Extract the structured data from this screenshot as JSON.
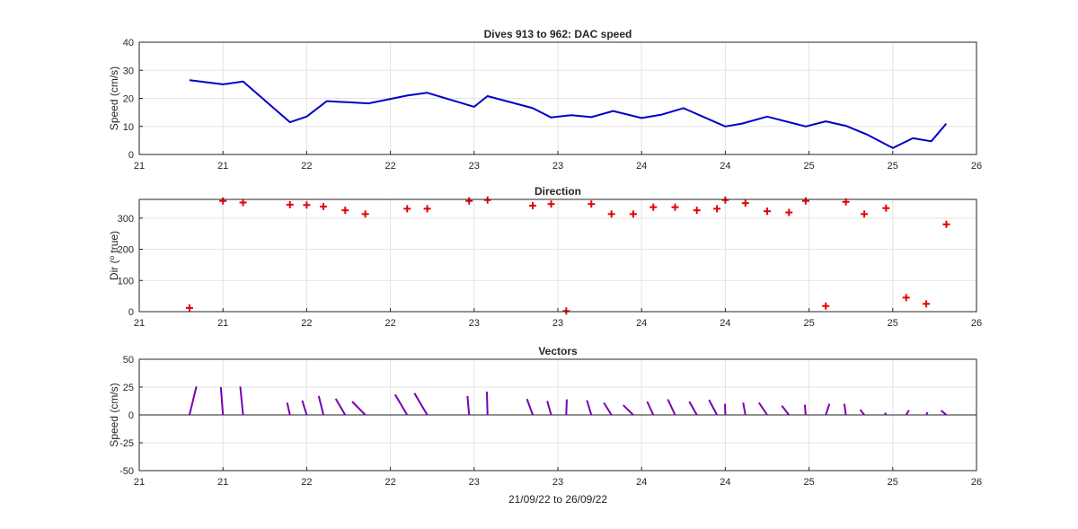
{
  "figure": {
    "background": "#ffffff",
    "xlabel_bottom": "21/09/22 to 26/09/22"
  },
  "chart_data": [
    {
      "type": "line",
      "title": "Dives 913 to 962: DAC speed",
      "ylabel": "Speed (cm/s)",
      "xlim": [
        21,
        26
      ],
      "ylim": [
        0,
        40
      ],
      "xticks": [
        21,
        21.5,
        22,
        22.5,
        23,
        23.5,
        24,
        24.5,
        25,
        25.5,
        26
      ],
      "xtick_labels": [
        "21",
        "21",
        "22",
        "22",
        "23",
        "23",
        "24",
        "24",
        "25",
        "25",
        "26"
      ],
      "yticks": [
        0,
        10,
        20,
        30,
        40
      ],
      "ytick_labels": [
        "0",
        "10",
        "20",
        "30",
        "40"
      ],
      "grid": true,
      "color": "#0000c8",
      "x": [
        21.3,
        21.5,
        21.62,
        21.9,
        22.0,
        22.12,
        22.37,
        22.6,
        22.72,
        23.0,
        23.08,
        23.35,
        23.46,
        23.58,
        23.7,
        23.83,
        24.0,
        24.12,
        24.25,
        24.5,
        24.6,
        24.75,
        24.98,
        25.1,
        25.22,
        25.35,
        25.5,
        25.62,
        25.73,
        25.82
      ],
      "values": [
        26.5,
        25.0,
        26.0,
        11.5,
        13.5,
        19.0,
        18.2,
        21.0,
        22.0,
        17.0,
        20.8,
        16.5,
        13.2,
        14.0,
        13.3,
        15.5,
        13.0,
        14.2,
        16.5,
        10.0,
        11.0,
        13.5,
        10.0,
        11.8,
        10.2,
        7.0,
        2.3,
        5.8,
        4.7,
        11.0
      ],
      "x_in_fn": [
        21.3,
        21.5,
        21.62,
        21.9,
        22.0,
        22.12,
        22.37,
        22.6,
        22.72,
        23.0,
        23.08,
        23.35,
        23.46,
        23.58,
        23.7,
        23.83,
        24.0,
        24.12,
        24.25,
        24.5,
        24.6,
        24.75,
        24.98,
        25.1,
        25.22,
        25.35,
        25.5,
        25.62,
        25.73,
        25.82
      ]
    },
    {
      "type": "scatter",
      "title": "Direction",
      "ylabel": "Dir (",
      "ylabel_sup": "o",
      "ylabel_rest": " true)",
      "xlim": [
        21,
        26
      ],
      "ylim": [
        0,
        360
      ],
      "xticks": [
        21,
        21.5,
        22,
        22.5,
        23,
        23.5,
        24,
        24.5,
        25,
        25.5,
        26
      ],
      "xtick_labels": [
        "21",
        "21",
        "22",
        "22",
        "23",
        "23",
        "24",
        "24",
        "25",
        "25",
        "26"
      ],
      "yticks": [
        0,
        100,
        200,
        300
      ],
      "ytick_labels": [
        "0",
        "100",
        "200",
        "300"
      ],
      "grid": true,
      "marker": "plus",
      "color": "#e60000",
      "x": [
        21.3,
        21.5,
        21.62,
        21.9,
        22.0,
        22.1,
        22.23,
        22.35,
        22.6,
        22.72,
        22.97,
        23.08,
        23.35,
        23.46,
        23.55,
        23.7,
        23.82,
        23.95,
        24.07,
        24.2,
        24.33,
        24.45,
        24.5,
        24.62,
        24.75,
        24.88,
        24.98,
        25.1,
        25.22,
        25.33,
        25.46,
        25.58,
        25.7,
        25.82
      ],
      "values": [
        12,
        355,
        350,
        343,
        342,
        337,
        325,
        313,
        330,
        330,
        355,
        358,
        340,
        345,
        2,
        345,
        313,
        313,
        335,
        335,
        325,
        330,
        358,
        348,
        322,
        318,
        355,
        18,
        352,
        313,
        332,
        45,
        25,
        280
      ]
    },
    {
      "type": "vectors",
      "title": "Vectors",
      "ylabel": "Speed (cm/s)",
      "xlim": [
        21,
        26
      ],
      "ylim": [
        -50,
        50
      ],
      "xticks": [
        21,
        21.5,
        22,
        22.5,
        23,
        23.5,
        24,
        24.5,
        25,
        25.5,
        26
      ],
      "xtick_labels": [
        "21",
        "21",
        "22",
        "22",
        "23",
        "23",
        "24",
        "24",
        "25",
        "25",
        "26"
      ],
      "yticks": [
        -50,
        -25,
        0,
        25,
        50
      ],
      "ytick_labels": [
        "-50",
        "-25",
        "0",
        "25",
        "50"
      ],
      "grid": true,
      "color": "#7a00b4",
      "x": [
        21.3,
        21.5,
        21.62,
        21.9,
        22.0,
        22.1,
        22.23,
        22.35,
        22.6,
        22.72,
        22.97,
        23.08,
        23.35,
        23.46,
        23.55,
        23.7,
        23.82,
        23.95,
        24.07,
        24.2,
        24.33,
        24.45,
        24.5,
        24.62,
        24.75,
        24.88,
        24.98,
        25.1,
        25.22,
        25.33,
        25.46,
        25.58,
        25.7,
        25.82
      ],
      "u": [
        6.2,
        -1.9,
        -2.5,
        -2.5,
        -4.0,
        -4.2,
        -8.5,
        -11.8,
        -10.8,
        -11.5,
        -1.5,
        -0.6,
        -5.2,
        -3.5,
        0.5,
        -4.0,
        -6.8,
        -9.0,
        -5.5,
        -6.5,
        -6.8,
        -7.1,
        -0.3,
        -2.0,
        -7.4,
        -6.4,
        -0.8,
        3.3,
        -1.4,
        -3.7,
        -1.0,
        2.5,
        1.2,
        -4.7
      ],
      "v": [
        25.5,
        25.0,
        25.5,
        11.0,
        13.0,
        17.0,
        14.5,
        12.0,
        18.3,
        19.5,
        17.0,
        20.8,
        14.3,
        12.5,
        14.0,
        13.2,
        11.0,
        8.8,
        12.0,
        14.0,
        12.0,
        13.5,
        10.0,
        11.0,
        11.0,
        8.3,
        9.2,
        10.0,
        10.0,
        4.8,
        2.0,
        4.2,
        2.5,
        4.0
      ]
    }
  ]
}
